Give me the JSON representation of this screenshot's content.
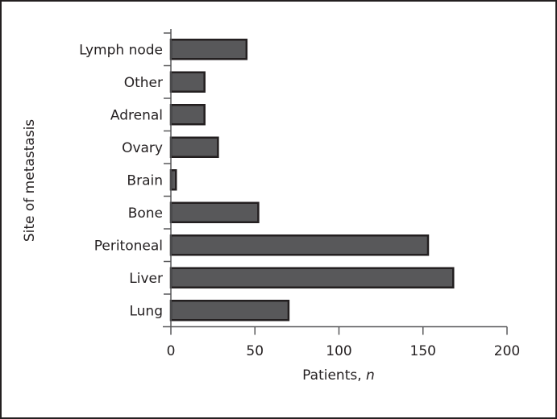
{
  "chart_data": {
    "type": "bar",
    "orientation": "horizontal",
    "categories": [
      "Lymph node",
      "Other",
      "Adrenal",
      "Ovary",
      "Brain",
      "Bone",
      "Peritoneal",
      "Liver",
      "Lung"
    ],
    "values": [
      45,
      20,
      20,
      28,
      3,
      52,
      153,
      168,
      70
    ],
    "title": "",
    "xlabel": "Patients, ",
    "xlabel_italic": "n",
    "ylabel": "Site of metastasis",
    "xlim": [
      0,
      200
    ],
    "xticks": [
      0,
      50,
      100,
      150,
      200
    ],
    "grid": false,
    "bar_color": "#58585a",
    "bar_edge_color": "#231f20"
  }
}
